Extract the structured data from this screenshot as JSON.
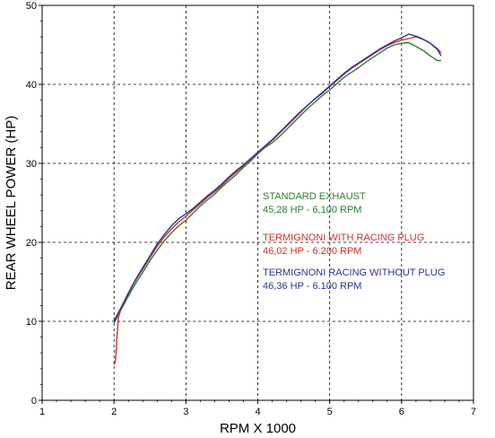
{
  "chart_data": {
    "type": "line",
    "xlabel": "RPM X 1000",
    "ylabel": "REAR WHEEL POWER (HP)",
    "xlim": [
      1,
      7
    ],
    "ylim": [
      0,
      50
    ],
    "xticks": [
      "1",
      "2",
      "3",
      "4",
      "5",
      "6",
      "7"
    ],
    "yticks": [
      "0",
      "10",
      "20",
      "30",
      "40",
      "50"
    ],
    "grid": true,
    "series": [
      {
        "name": "STANDARD EXHAUST",
        "color": "#2e7d32",
        "x": [
          2.0,
          2.03,
          2.06,
          2.1,
          2.2,
          2.3,
          2.4,
          2.5,
          2.6,
          2.7,
          2.8,
          2.9,
          3.0,
          3.1,
          3.2,
          3.3,
          3.4,
          3.5,
          3.6,
          3.7,
          3.8,
          3.9,
          4.0,
          4.1,
          4.2,
          4.3,
          4.4,
          4.5,
          4.6,
          4.7,
          4.8,
          4.9,
          5.0,
          5.1,
          5.2,
          5.3,
          5.4,
          5.5,
          5.6,
          5.7,
          5.8,
          5.9,
          6.0,
          6.1,
          6.2,
          6.3,
          6.4,
          6.5,
          6.55
        ],
        "y": [
          9.8,
          10.3,
          10.8,
          11.5,
          13.2,
          14.8,
          16.2,
          17.7,
          19.0,
          20.2,
          21.2,
          22.1,
          22.8,
          23.7,
          24.6,
          25.4,
          26.1,
          27.0,
          27.8,
          28.6,
          29.5,
          30.3,
          31.2,
          32.0,
          32.6,
          33.4,
          34.3,
          35.2,
          36.1,
          37.0,
          37.8,
          38.6,
          39.3,
          40.1,
          40.9,
          41.5,
          42.1,
          42.8,
          43.4,
          44.0,
          44.6,
          45.0,
          45.2,
          45.28,
          44.8,
          44.3,
          43.6,
          43.0,
          43.0
        ]
      },
      {
        "name": "TERMIGNONI WITH RACING PLUG",
        "color": "#d32f2f",
        "x": [
          2.0,
          2.02,
          2.04,
          2.06,
          2.1,
          2.2,
          2.3,
          2.4,
          2.5,
          2.6,
          2.7,
          2.8,
          2.9,
          3.0,
          3.1,
          3.2,
          3.3,
          3.4,
          3.5,
          3.6,
          3.7,
          3.8,
          3.9,
          4.0,
          4.1,
          4.2,
          4.3,
          4.4,
          4.5,
          4.6,
          4.7,
          4.8,
          4.9,
          5.0,
          5.1,
          5.2,
          5.3,
          5.4,
          5.5,
          5.6,
          5.7,
          5.8,
          5.9,
          6.0,
          6.1,
          6.2,
          6.3,
          6.4,
          6.5,
          6.55
        ],
        "y": [
          4.5,
          5.0,
          8.0,
          10.5,
          11.6,
          13.5,
          15.2,
          16.6,
          18.1,
          19.5,
          20.7,
          21.7,
          22.6,
          23.3,
          24.1,
          24.9,
          25.7,
          26.4,
          27.2,
          28.1,
          28.9,
          29.7,
          30.5,
          31.3,
          32.1,
          32.9,
          33.8,
          34.7,
          35.6,
          36.5,
          37.4,
          38.2,
          38.9,
          39.7,
          40.5,
          41.3,
          42.0,
          42.6,
          43.2,
          43.8,
          44.4,
          44.9,
          45.3,
          45.6,
          45.8,
          46.02,
          45.7,
          45.2,
          44.5,
          44.0
        ]
      },
      {
        "name": "TERMIGNONI RACING WITHOUT PLUG",
        "color": "#283593",
        "x": [
          2.0,
          2.03,
          2.06,
          2.1,
          2.2,
          2.3,
          2.4,
          2.5,
          2.6,
          2.7,
          2.8,
          2.9,
          3.0,
          3.1,
          3.2,
          3.3,
          3.4,
          3.5,
          3.6,
          3.7,
          3.8,
          3.9,
          4.0,
          4.1,
          4.2,
          4.3,
          4.4,
          4.5,
          4.6,
          4.7,
          4.8,
          4.9,
          5.0,
          5.1,
          5.2,
          5.3,
          5.4,
          5.5,
          5.6,
          5.7,
          5.8,
          5.9,
          6.0,
          6.1,
          6.2,
          6.3,
          6.4,
          6.5,
          6.55
        ],
        "y": [
          10.0,
          10.6,
          11.1,
          11.8,
          13.6,
          15.3,
          16.8,
          18.3,
          19.8,
          21.0,
          22.1,
          23.0,
          23.6,
          24.3,
          25.1,
          25.9,
          26.6,
          27.4,
          28.3,
          29.1,
          29.8,
          30.6,
          31.4,
          32.2,
          33.0,
          33.9,
          34.8,
          35.7,
          36.6,
          37.4,
          38.2,
          39.0,
          39.8,
          40.6,
          41.4,
          42.1,
          42.7,
          43.3,
          43.9,
          44.5,
          45.0,
          45.5,
          45.9,
          46.36,
          46.1,
          45.7,
          45.2,
          44.4,
          43.6
        ]
      }
    ],
    "annotations": [
      {
        "lines": [
          "STANDARD EXHAUST",
          "45,28 HP - 6,100 RPM"
        ],
        "color": "#2e7d32"
      },
      {
        "lines": [
          "TERMIGNONI WITH RACING PLUG",
          "46,02 HP - 6.200 RPM"
        ],
        "color": "#d32f2f"
      },
      {
        "lines": [
          "TERMIGNONI RACING WITHOUT PLUG",
          "46,36 HP - 6.100 RPM"
        ],
        "color": "#283593"
      }
    ]
  }
}
